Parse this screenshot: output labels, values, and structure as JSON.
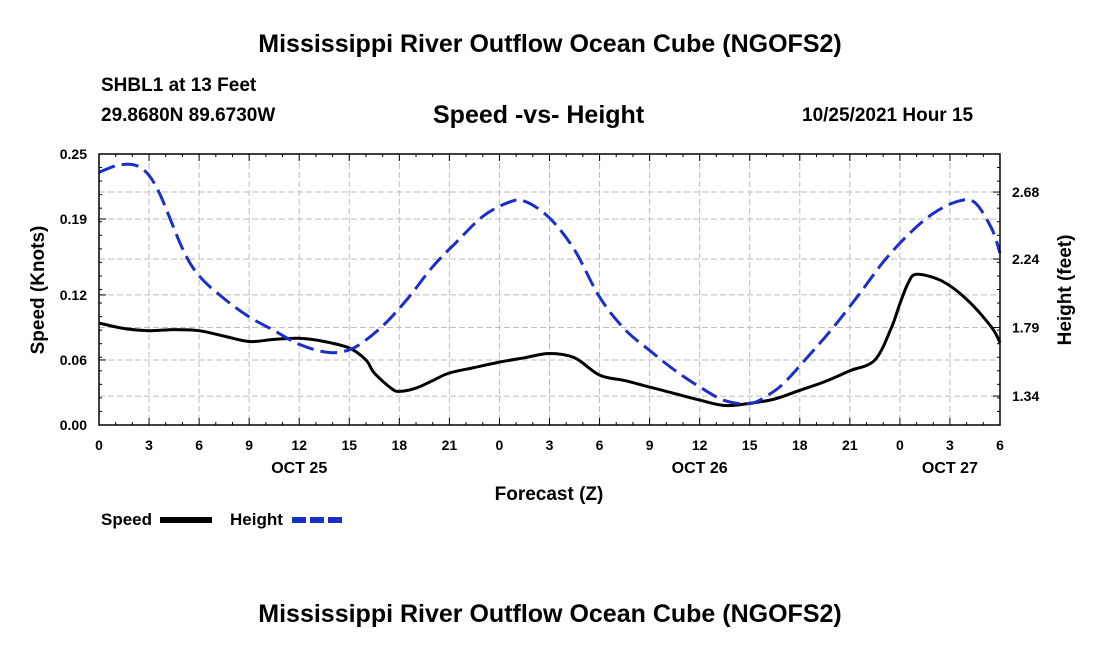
{
  "page": {
    "title": "Mississippi River Outflow Ocean Cube (NGOFS2)",
    "footer_title": "Mississippi River Outflow Ocean Cube (NGOFS2)",
    "station": "SHBL1 at 13 Feet",
    "coords": "29.8680N  89.6730W",
    "subtitle": "Speed -vs- Height",
    "datetime": "10/25/2021 Hour 15"
  },
  "chart_data": {
    "type": "line",
    "title": "Speed -vs- Height",
    "xlabel": "Forecast (Z)",
    "ylabel": "Speed (Knots)",
    "y2label": "Height (feet)",
    "xlim": [
      0,
      54
    ],
    "ylim": [
      0,
      0.25
    ],
    "y2lim": [
      1.15,
      2.93
    ],
    "grid": true,
    "x_ticks": [
      0,
      3,
      6,
      9,
      12,
      15,
      18,
      21,
      24,
      27,
      30,
      33,
      36,
      39,
      42,
      45,
      48,
      51,
      54
    ],
    "x_tick_labels": [
      "0",
      "3",
      "6",
      "9",
      "12",
      "15",
      "18",
      "21",
      "0",
      "3",
      "6",
      "9",
      "12",
      "15",
      "18",
      "21",
      "0",
      "3",
      "6"
    ],
    "date_labels": [
      {
        "x": 12,
        "label": "OCT 25"
      },
      {
        "x": 36,
        "label": "OCT 26"
      },
      {
        "x": 51,
        "label": "OCT 27"
      }
    ],
    "y_ticks": [
      0.0,
      0.06,
      0.12,
      0.19,
      0.25
    ],
    "y_tick_labels": [
      "0.00",
      "0.06",
      "0.12",
      "0.19",
      "0.25"
    ],
    "y2_ticks": [
      1.34,
      1.79,
      2.24,
      2.68
    ],
    "y2_tick_labels": [
      "1.34",
      "1.79",
      "2.24",
      "2.68"
    ],
    "series": [
      {
        "name": "Speed",
        "axis": "left",
        "color": "#000000",
        "style": "solid",
        "x": [
          0,
          1.5,
          3,
          4.5,
          6,
          7.5,
          9,
          10.5,
          12,
          13.5,
          15,
          16,
          16.5,
          17.5,
          18,
          19,
          20,
          21,
          22.5,
          24,
          25.5,
          27,
          28.5,
          30,
          31.5,
          33,
          34.5,
          36,
          37.5,
          39,
          40.5,
          42,
          43.5,
          45,
          46.5,
          47.5,
          48,
          48.5,
          49,
          50.5,
          52,
          53.5,
          54
        ],
        "values": [
          0.094,
          0.089,
          0.087,
          0.088,
          0.087,
          0.082,
          0.077,
          0.079,
          0.08,
          0.077,
          0.071,
          0.06,
          0.048,
          0.034,
          0.031,
          0.034,
          0.041,
          0.048,
          0.053,
          0.058,
          0.062,
          0.066,
          0.062,
          0.046,
          0.041,
          0.035,
          0.029,
          0.023,
          0.018,
          0.02,
          0.024,
          0.032,
          0.04,
          0.05,
          0.06,
          0.09,
          0.112,
          0.131,
          0.139,
          0.133,
          0.116,
          0.09,
          0.076
        ]
      },
      {
        "name": "Height",
        "axis": "right",
        "color": "#1a2fc9",
        "style": "dashed",
        "x": [
          0,
          1.3,
          2.5,
          3.5,
          5,
          6,
          7.5,
          9,
          10.5,
          12,
          13.5,
          14.5,
          15.5,
          17,
          18.5,
          20,
          21.5,
          23,
          24.5,
          25.5,
          27,
          28.5,
          30,
          31.5,
          33,
          34.5,
          36,
          37.5,
          39,
          40,
          41,
          42.5,
          44,
          45.5,
          47,
          48.5,
          50,
          51.5,
          52.5,
          53.5,
          54
        ],
        "values": [
          2.81,
          2.86,
          2.84,
          2.7,
          2.31,
          2.13,
          1.98,
          1.86,
          1.77,
          1.68,
          1.63,
          1.63,
          1.67,
          1.8,
          1.98,
          2.19,
          2.36,
          2.52,
          2.61,
          2.62,
          2.51,
          2.3,
          1.99,
          1.78,
          1.64,
          1.51,
          1.4,
          1.31,
          1.29,
          1.34,
          1.42,
          1.6,
          1.79,
          2.0,
          2.22,
          2.4,
          2.54,
          2.62,
          2.61,
          2.44,
          2.28
        ]
      }
    ]
  },
  "legend": {
    "speed_label": "Speed",
    "height_label": "Height"
  }
}
